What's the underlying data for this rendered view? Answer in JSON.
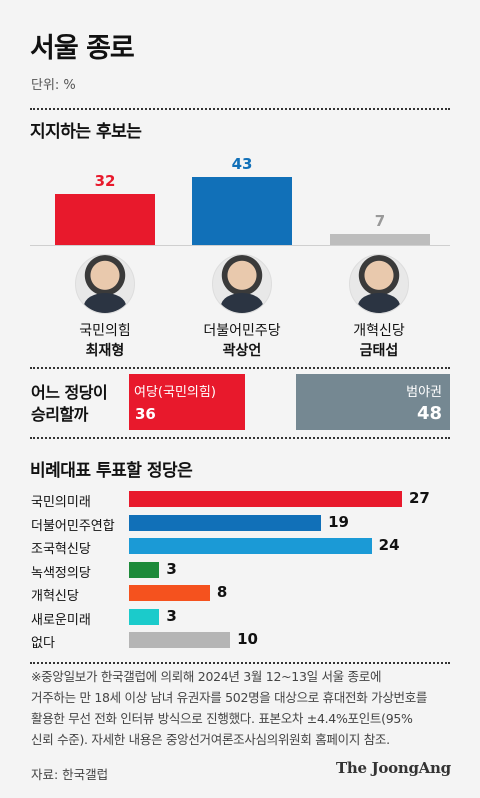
{
  "title": "서울 종로",
  "unit": "단위: %",
  "colors": {
    "ppp": "#e8192c",
    "dp": "#1170b8",
    "reform": "#bdbdbd",
    "opposition": "#758892",
    "rebuild": "#1b9ad6",
    "green": "#1d8a3a",
    "reform_party": "#f5521e",
    "new_future": "#1bcbcb",
    "none": "#b5b5b5"
  },
  "chart_data": [
    {
      "type": "bar",
      "title": "지지하는 후보는",
      "categories": [
        "국민의힘 최재형",
        "더불어민주당 곽상언",
        "개혁신당 금태섭"
      ],
      "candidates": [
        {
          "party": "국민의힘",
          "name": "최재형",
          "value": 32,
          "color": "#e8192c"
        },
        {
          "party": "더불어민주당",
          "name": "곽상언",
          "value": 43,
          "color": "#1170b8"
        },
        {
          "party": "개혁신당",
          "name": "금태섭",
          "value": 7,
          "color": "#bdbdbd"
        }
      ]
    },
    {
      "type": "bar",
      "title": "어느 정당이 승리할까",
      "title_lines": [
        "어느 정당이",
        "승리할까"
      ],
      "segments": [
        {
          "label": "여당(국민의힘)",
          "value": 36,
          "color": "#e8192c"
        },
        {
          "label": "",
          "value": 16,
          "color": "#f4f4f4"
        },
        {
          "label": "범야권",
          "value": 48,
          "color": "#758892"
        }
      ]
    },
    {
      "type": "bar",
      "title": "비례대표 투표할 정당은",
      "parties": [
        {
          "label": "국민의미래",
          "value": 27,
          "color": "#e8192c"
        },
        {
          "label": "더불어민주연합",
          "value": 19,
          "color": "#1170b8"
        },
        {
          "label": "조국혁신당",
          "value": 24,
          "color": "#1b9ad6"
        },
        {
          "label": "녹색정의당",
          "value": 3,
          "color": "#1d8a3a"
        },
        {
          "label": "개혁신당",
          "value": 8,
          "color": "#f5521e"
        },
        {
          "label": "새로운미래",
          "value": 3,
          "color": "#1bcbcb"
        },
        {
          "label": "없다",
          "value": 10,
          "color": "#b5b5b5"
        }
      ]
    }
  ],
  "note_lines": [
    "※중앙일보가 한국갤럽에 의뢰해 2024년 3월 12~13일 서울 종로에",
    "거주하는 만 18세 이상 남녀 유권자를 502명을 대상으로 휴대전화 가상번호를",
    "활용한 무선 전화 인터뷰 방식으로 진행했다. 표본오차 ±4.4%포인트(95%",
    "신뢰 수준). 자세한 내용은 중앙선거여론조사심의위원회 홈페이지 참조."
  ],
  "source": "자료: 한국갤럽",
  "brand": "The JoongAng"
}
